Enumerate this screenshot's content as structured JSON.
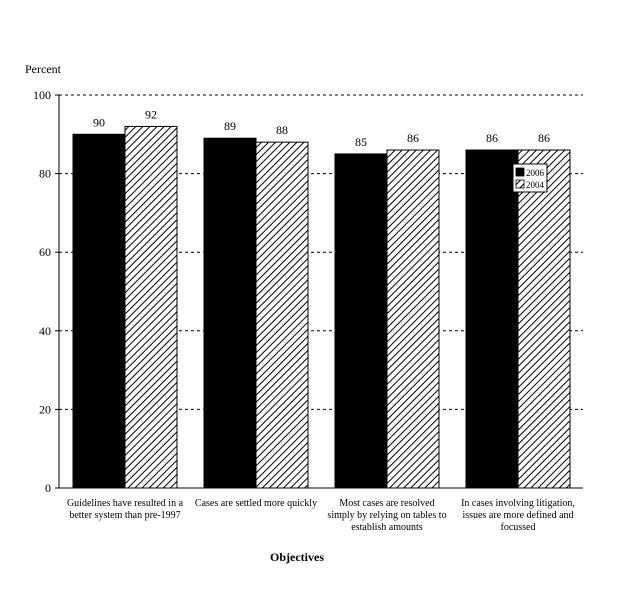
{
  "chart_data": {
    "type": "bar",
    "title": "",
    "ylabel": "Percent",
    "xlabel": "Objectives",
    "ylim": [
      0,
      100
    ],
    "yticks": [
      0,
      20,
      40,
      60,
      80,
      100
    ],
    "grid": true,
    "legend_position": "inside, top-right",
    "categories": [
      [
        "Guidelines have resulted in a",
        "better system than pre-1997"
      ],
      [
        "Cases are settled more quickly"
      ],
      [
        "Most cases are resolved",
        "simply by relying on tables to",
        "establish amounts"
      ],
      [
        "In cases involving litigation,",
        "issues are more defined and",
        "focussed"
      ]
    ],
    "series": [
      {
        "name": "2006",
        "values": [
          90,
          89,
          85,
          86
        ],
        "fill": "solid",
        "color": "#000000"
      },
      {
        "name": "2004",
        "values": [
          92,
          88,
          86,
          86
        ],
        "fill": "diagonal-hatch",
        "color": "#000000"
      }
    ]
  }
}
